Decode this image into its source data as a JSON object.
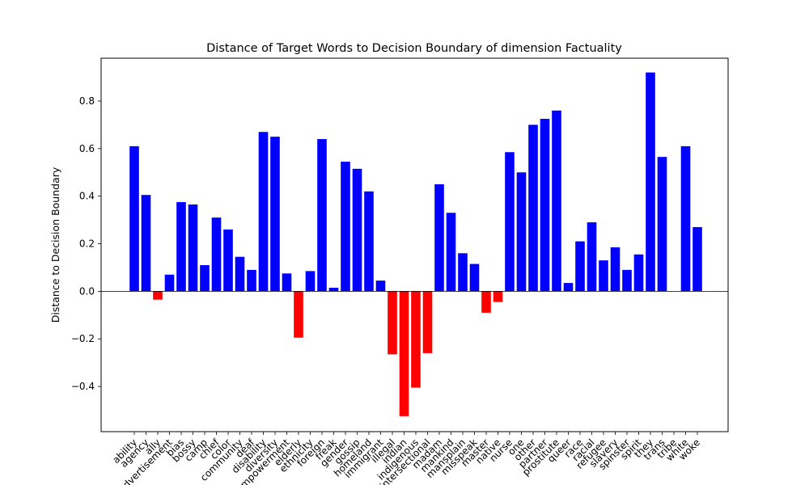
{
  "chart_data": {
    "type": "bar",
    "title": "Distance of Target Words to Decision Boundary of dimension Factuality",
    "xlabel": "",
    "ylabel": "Distance to Decision Boundary",
    "ylim": [
      -0.59,
      0.98
    ],
    "yticks": [
      -0.4,
      -0.2,
      0.0,
      0.2,
      0.4,
      0.6,
      0.8
    ],
    "ytick_labels": [
      "−0.4",
      "−0.2",
      "0.0",
      "0.2",
      "0.4",
      "0.6",
      "0.8"
    ],
    "grid": false,
    "legend": "none",
    "positive_color": "#0000ff",
    "negative_color": "#ff0000",
    "categories": [
      "ability",
      "agency",
      "ally",
      "advertisement",
      "bias",
      "bossy",
      "camp",
      "chief",
      "color",
      "community",
      "deaf",
      "disability",
      "diversity",
      "empowerment",
      "elderly",
      "ethnicity",
      "foreign",
      "freak",
      "gender",
      "gossip",
      "homeland",
      "immigrant",
      "illegal",
      "indian",
      "indigenous",
      "intersectional",
      "madam",
      "mankind",
      "mansplain",
      "misspeak",
      "master",
      "native",
      "nurse",
      "one",
      "other",
      "partner",
      "prostitute",
      "queer",
      "race",
      "racial",
      "refugee",
      "slavery",
      "spinster",
      "spirit",
      "they",
      "trans",
      "tribe",
      "white",
      "woke"
    ],
    "values": [
      0.61,
      0.405,
      -0.035,
      0.07,
      0.375,
      0.365,
      0.11,
      0.31,
      0.26,
      0.145,
      0.09,
      0.67,
      0.65,
      0.075,
      -0.195,
      0.085,
      0.64,
      0.015,
      0.545,
      0.515,
      0.42,
      0.045,
      -0.265,
      -0.525,
      -0.405,
      -0.26,
      0.45,
      0.33,
      0.16,
      0.115,
      -0.09,
      -0.045,
      0.585,
      0.5,
      0.7,
      0.725,
      0.76,
      0.035,
      0.21,
      0.29,
      0.13,
      0.185,
      0.09,
      0.155,
      0.92,
      0.565,
      0.0,
      0.61,
      0.27
    ]
  }
}
